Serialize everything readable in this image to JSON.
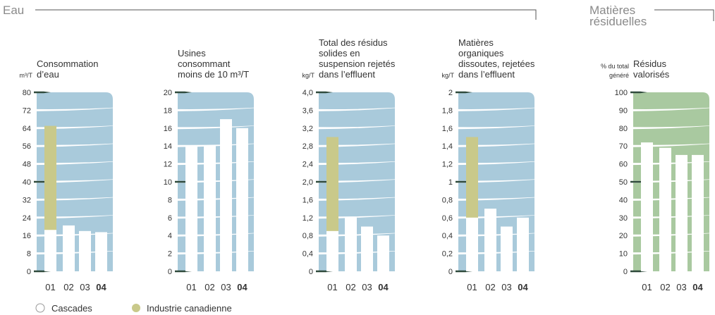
{
  "sections": [
    {
      "label": [
        "Eau"
      ]
    },
    {
      "label": [
        "Matières",
        "résiduelles"
      ]
    }
  ],
  "chart_data": [
    {
      "type": "bar",
      "title": [
        "Consommation",
        "d’eau"
      ],
      "unit": [
        "m³/T"
      ],
      "panel_color": "#a9cadb",
      "categories": [
        "01",
        "02",
        "03",
        "04"
      ],
      "series": [
        {
          "name": "Industrie canadienne",
          "color": "#c9c98a",
          "values": [
            65,
            null,
            null,
            null
          ]
        },
        {
          "name": "Cascades",
          "color": "#ffffff",
          "values": [
            18.5,
            20.5,
            18,
            17.5
          ]
        }
      ],
      "ylim": [
        0,
        80
      ],
      "yticks": [
        0,
        8,
        16,
        24,
        32,
        40,
        48,
        56,
        64,
        72,
        80
      ],
      "grid": true
    },
    {
      "type": "bar",
      "title": [
        "Usines",
        "consommant",
        "moins de 10 m³/T"
      ],
      "unit": [],
      "panel_color": "#a9cadb",
      "categories": [
        "01",
        "02",
        "03",
        "04"
      ],
      "series": [
        {
          "name": "Cascades",
          "color": "#ffffff",
          "values": [
            14,
            14,
            17,
            16
          ]
        }
      ],
      "ylim": [
        0,
        20
      ],
      "yticks": [
        0,
        2,
        4,
        6,
        8,
        10,
        12,
        14,
        16,
        18,
        20
      ],
      "grid": true
    },
    {
      "type": "bar",
      "title": [
        "Total des résidus",
        "solides en",
        "suspension rejetés",
        "dans l’effluent"
      ],
      "unit": [
        "kg/T"
      ],
      "panel_color": "#a9cadb",
      "categories": [
        "01",
        "02",
        "03",
        "04"
      ],
      "series": [
        {
          "name": "Industrie canadienne",
          "color": "#c9c98a",
          "values": [
            3.0,
            null,
            null,
            null
          ]
        },
        {
          "name": "Cascades",
          "color": "#ffffff",
          "values": [
            0.9,
            1.2,
            1.0,
            0.8
          ]
        }
      ],
      "ylim": [
        0,
        4
      ],
      "yticks": [
        0,
        {
          "value": 0.4,
          "label": "0,4"
        },
        {
          "value": 0.8,
          "label": "0,8"
        },
        {
          "value": 1.2,
          "label": "1,2"
        },
        {
          "value": 1.6,
          "label": "1,6"
        },
        {
          "value": 2,
          "label": "2,0"
        },
        {
          "value": 2.4,
          "label": "2,4"
        },
        {
          "value": 2.8,
          "label": "2,8"
        },
        {
          "value": 3.2,
          "label": "3,2"
        },
        {
          "value": 3.6,
          "label": "3,6"
        },
        {
          "value": 4,
          "label": "4,0"
        }
      ],
      "grid": true
    },
    {
      "type": "bar",
      "title": [
        "Matières",
        "organiques",
        "dissoutes, rejetées",
        "dans l’effluent"
      ],
      "unit": [
        "kg/T"
      ],
      "panel_color": "#a9cadb",
      "categories": [
        "01",
        "02",
        "03",
        "04"
      ],
      "series": [
        {
          "name": "Industrie canadienne",
          "color": "#c9c98a",
          "values": [
            1.5,
            null,
            null,
            null
          ]
        },
        {
          "name": "Cascades",
          "color": "#ffffff",
          "values": [
            0.6,
            0.7,
            0.5,
            0.6
          ]
        }
      ],
      "ylim": [
        0,
        2
      ],
      "yticks": [
        0,
        {
          "value": 0.2,
          "label": "0,2"
        },
        {
          "value": 0.4,
          "label": "0,4"
        },
        {
          "value": 0.6,
          "label": "0,6"
        },
        {
          "value": 0.8,
          "label": "0,8"
        },
        1,
        {
          "value": 1.2,
          "label": "1,2"
        },
        {
          "value": 1.4,
          "label": "1,4"
        },
        {
          "value": 1.6,
          "label": "1,6"
        },
        {
          "value": 1.8,
          "label": "1,8"
        },
        2
      ],
      "grid": true
    },
    {
      "type": "bar",
      "title": [
        "Résidus",
        "valorisés"
      ],
      "unit": [
        "% du total",
        "généré"
      ],
      "panel_color": "#a9c9a0",
      "categories": [
        "01",
        "02",
        "03",
        "04"
      ],
      "series": [
        {
          "name": "Cascades",
          "color": "#ffffff",
          "values": [
            72,
            69,
            65,
            65
          ]
        }
      ],
      "ylim": [
        0,
        100
      ],
      "yticks": [
        0,
        10,
        20,
        30,
        40,
        50,
        60,
        70,
        80,
        90,
        100
      ],
      "grid": true
    }
  ]
}
